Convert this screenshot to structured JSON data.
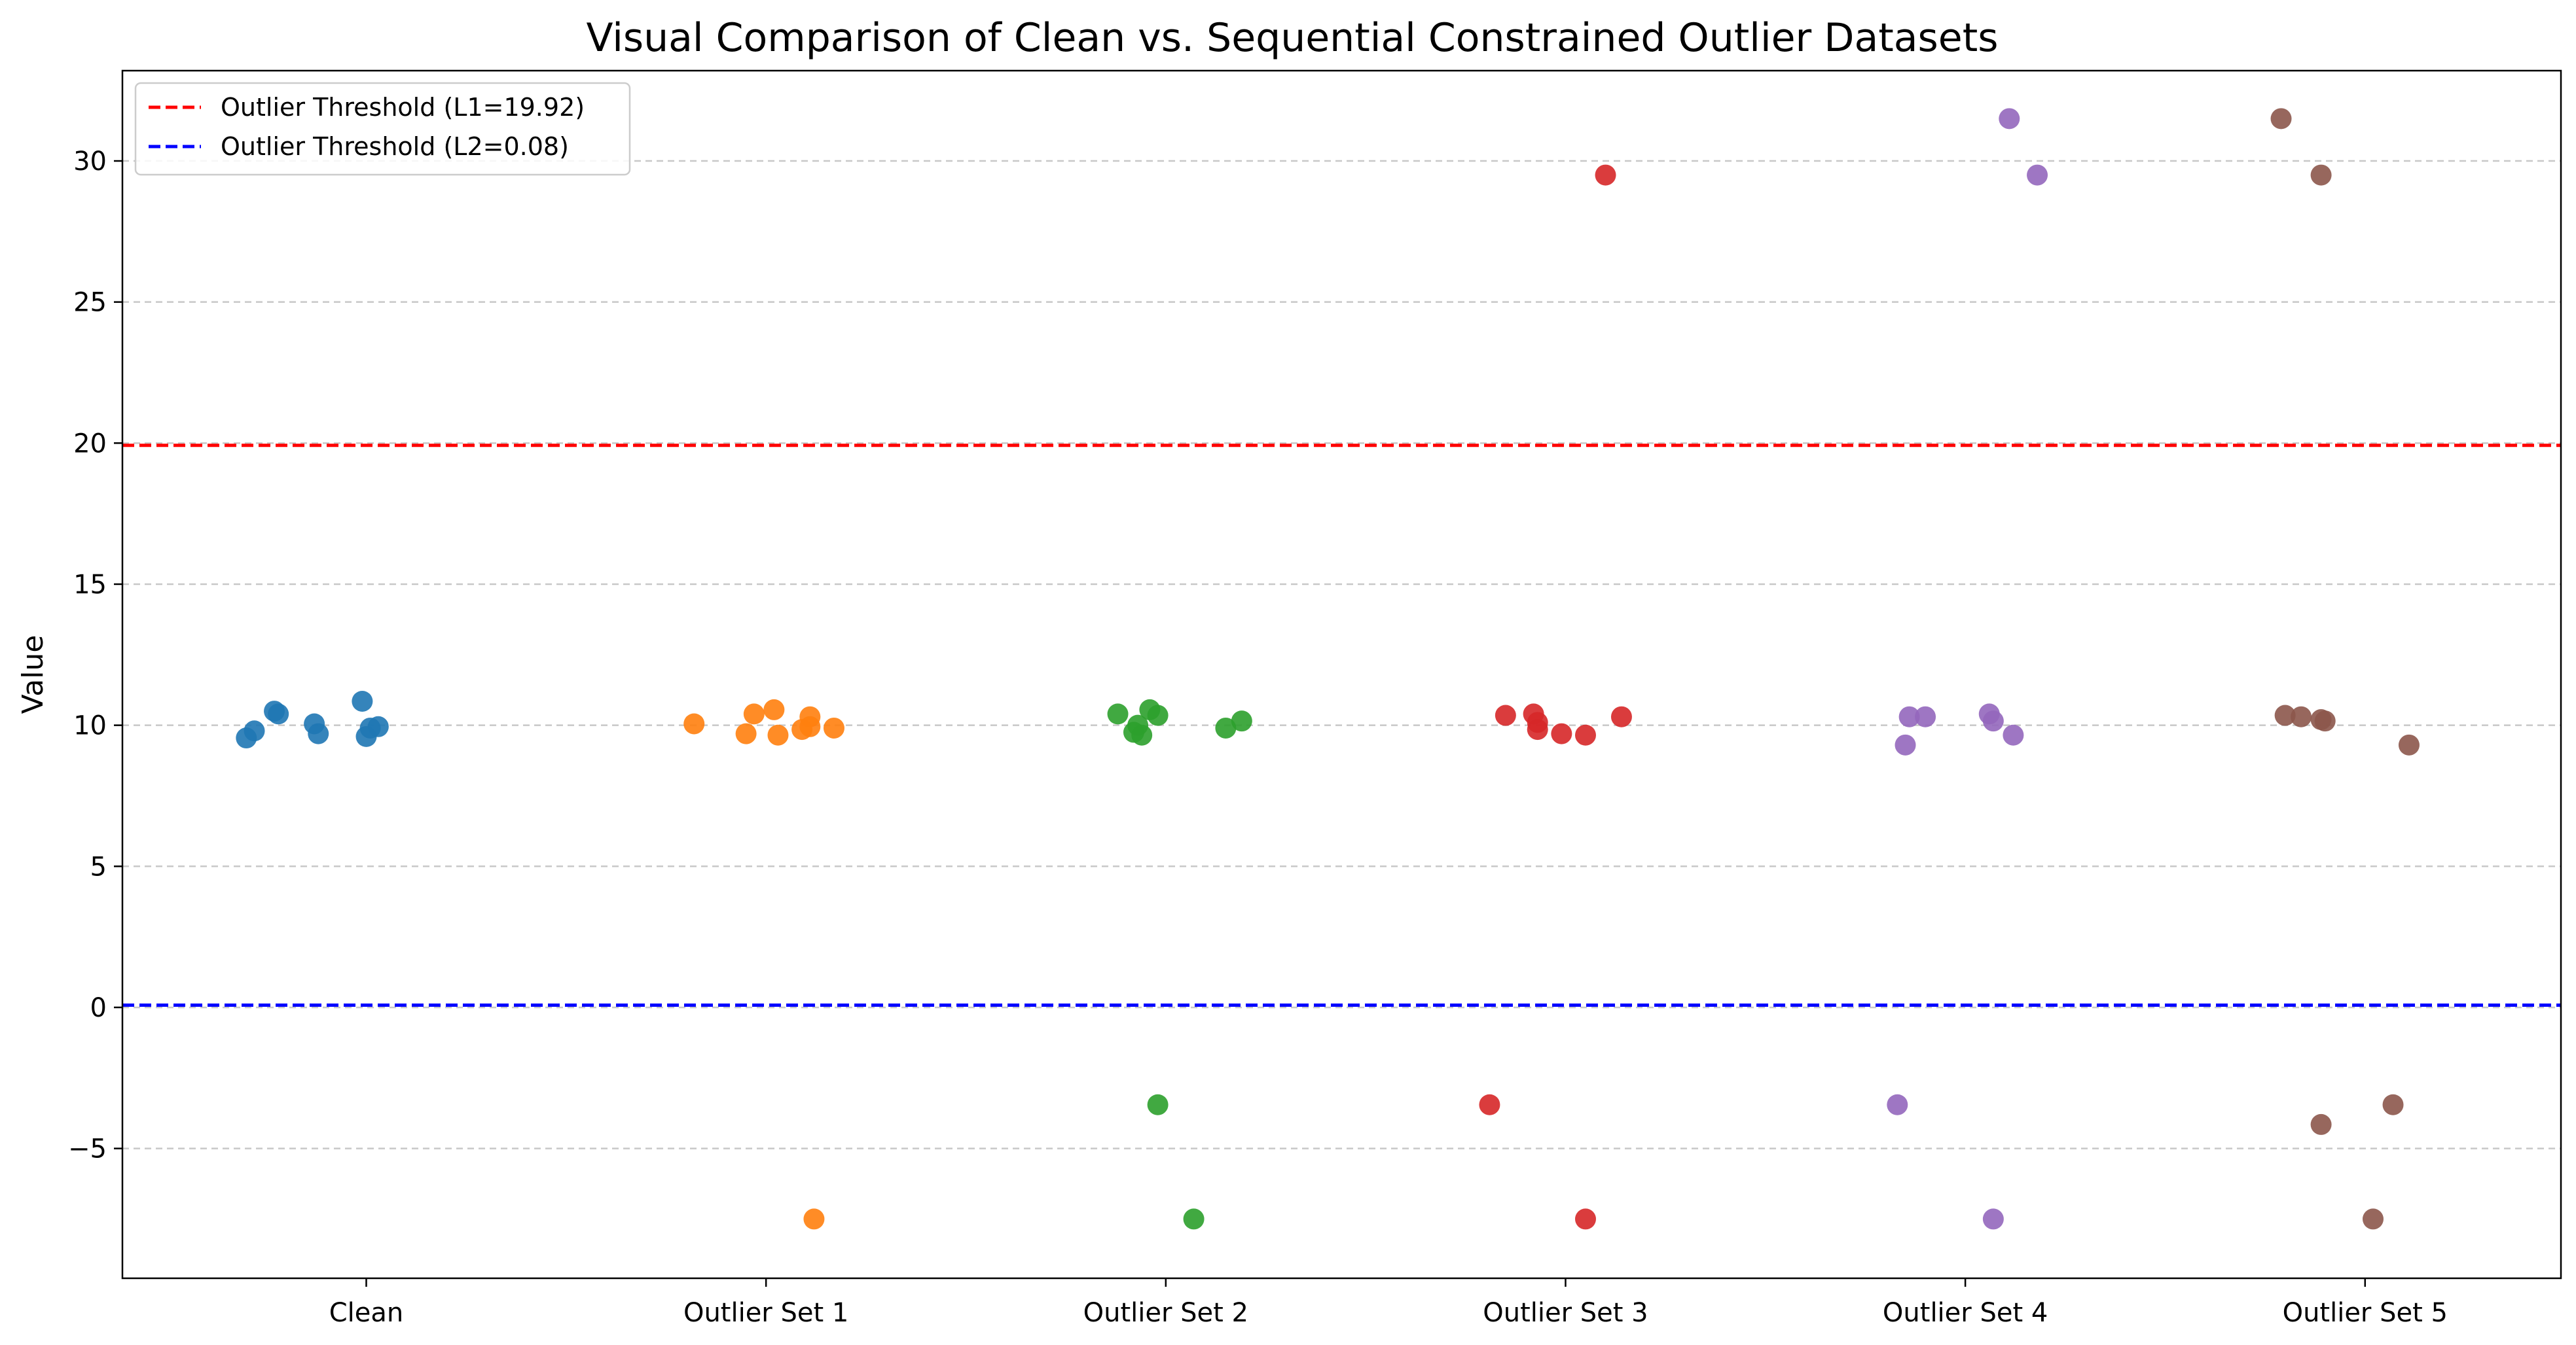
{
  "chart_data": {
    "type": "scatter",
    "title": "Visual Comparison of Clean vs. Sequential Constrained Outlier Datasets",
    "xlabel": "",
    "ylabel": "Value",
    "categories": [
      "Clean",
      "Outlier Set 1",
      "Outlier Set 2",
      "Outlier Set 3",
      "Outlier Set 4",
      "Outlier Set 5"
    ],
    "ylim": [
      -9.6,
      33.2
    ],
    "yticks": [
      -5,
      0,
      5,
      10,
      15,
      20,
      25,
      30
    ],
    "ytick_labels": [
      "−5",
      "0",
      "5",
      "10",
      "15",
      "20",
      "25",
      "30"
    ],
    "grid": "horizontal dashed",
    "legend_position": "top-left",
    "reference_lines": [
      {
        "label": "Outlier Threshold (L1=19.92)",
        "value": 19.92,
        "color": "#ff0000",
        "style": "dashed"
      },
      {
        "label": "Outlier Threshold (L2=0.08)",
        "value": 0.08,
        "color": "#0000ff",
        "style": "dashed"
      }
    ],
    "series": [
      {
        "category": "Clean",
        "color": "#1f77b4",
        "points": [
          {
            "x": -0.3,
            "y": 9.55
          },
          {
            "x": -0.28,
            "y": 9.8
          },
          {
            "x": -0.23,
            "y": 10.5
          },
          {
            "x": -0.22,
            "y": 10.4
          },
          {
            "x": -0.13,
            "y": 10.05
          },
          {
            "x": -0.12,
            "y": 9.7
          },
          {
            "x": -0.01,
            "y": 10.85
          },
          {
            "x": 0.0,
            "y": 9.6
          },
          {
            "x": 0.01,
            "y": 9.9
          },
          {
            "x": 0.03,
            "y": 9.95
          }
        ]
      },
      {
        "category": "Outlier Set 1",
        "color": "#ff7f0e",
        "points": [
          {
            "x": -0.18,
            "y": 10.05
          },
          {
            "x": -0.05,
            "y": 9.7
          },
          {
            "x": -0.03,
            "y": 10.4
          },
          {
            "x": 0.02,
            "y": 10.55
          },
          {
            "x": 0.03,
            "y": 9.65
          },
          {
            "x": 0.09,
            "y": 9.85
          },
          {
            "x": 0.11,
            "y": 9.95
          },
          {
            "x": 0.11,
            "y": 10.3
          },
          {
            "x": 0.17,
            "y": 9.9
          },
          {
            "x": 0.12,
            "y": -7.5
          }
        ]
      },
      {
        "category": "Outlier Set 2",
        "color": "#2ca02c",
        "points": [
          {
            "x": -0.12,
            "y": 10.4
          },
          {
            "x": -0.08,
            "y": 9.75
          },
          {
            "x": -0.07,
            "y": 10.0
          },
          {
            "x": -0.06,
            "y": 9.65
          },
          {
            "x": -0.04,
            "y": 10.55
          },
          {
            "x": -0.02,
            "y": 10.35
          },
          {
            "x": 0.15,
            "y": 9.9
          },
          {
            "x": 0.19,
            "y": 10.15
          },
          {
            "x": -0.02,
            "y": -3.45
          },
          {
            "x": 0.07,
            "y": -7.5
          }
        ]
      },
      {
        "category": "Outlier Set 3",
        "color": "#d62728",
        "points": [
          {
            "x": -0.15,
            "y": 10.35
          },
          {
            "x": -0.08,
            "y": 10.4
          },
          {
            "x": -0.07,
            "y": 10.1
          },
          {
            "x": -0.07,
            "y": 9.85
          },
          {
            "x": -0.01,
            "y": 9.7
          },
          {
            "x": 0.05,
            "y": 9.65
          },
          {
            "x": 0.14,
            "y": 10.3
          },
          {
            "x": 0.1,
            "y": 29.5
          },
          {
            "x": -0.19,
            "y": -3.45
          },
          {
            "x": 0.05,
            "y": -7.5
          }
        ]
      },
      {
        "category": "Outlier Set 4",
        "color": "#9467bd",
        "points": [
          {
            "x": -0.15,
            "y": 9.3
          },
          {
            "x": -0.14,
            "y": 10.3
          },
          {
            "x": -0.1,
            "y": 10.3
          },
          {
            "x": 0.06,
            "y": 10.4
          },
          {
            "x": 0.07,
            "y": 10.15
          },
          {
            "x": 0.12,
            "y": 9.65
          },
          {
            "x": 0.11,
            "y": 31.5
          },
          {
            "x": 0.18,
            "y": 29.5
          },
          {
            "x": -0.17,
            "y": -3.45
          },
          {
            "x": 0.07,
            "y": -7.5
          }
        ]
      },
      {
        "category": "Outlier Set 5",
        "color": "#8c564b",
        "points": [
          {
            "x": -0.2,
            "y": 10.35
          },
          {
            "x": -0.16,
            "y": 10.3
          },
          {
            "x": -0.11,
            "y": 10.2
          },
          {
            "x": -0.1,
            "y": 10.15
          },
          {
            "x": 0.11,
            "y": 9.3
          },
          {
            "x": -0.21,
            "y": 31.5
          },
          {
            "x": -0.11,
            "y": 29.5
          },
          {
            "x": -0.11,
            "y": -4.15
          },
          {
            "x": 0.07,
            "y": -3.45
          },
          {
            "x": 0.02,
            "y": -7.5
          }
        ]
      }
    ]
  }
}
